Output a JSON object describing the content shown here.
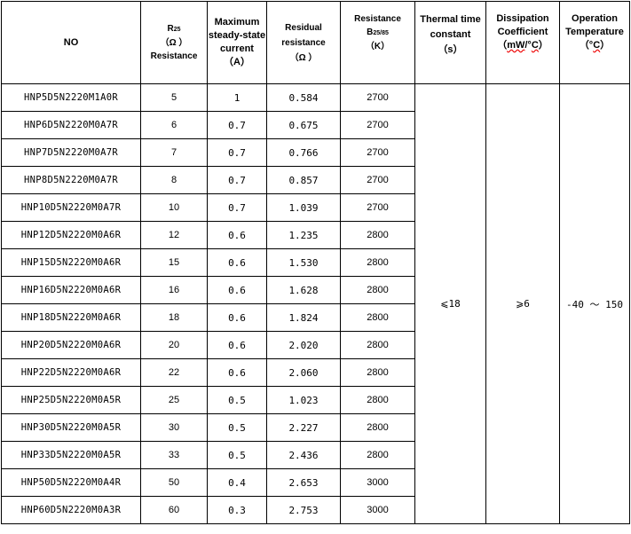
{
  "headers": {
    "no": "NO",
    "r25_a": "R",
    "r25_sub": "25",
    "r25_unit": "（Ω  ）",
    "r25_b": "Resistance",
    "current_a": "Maximum",
    "current_b": "steady-state",
    "current_c": "current",
    "current_unit": "（A）",
    "residual_a": "Residual",
    "residual_b": "resistance",
    "residual_unit": "（Ω  ）",
    "b_a": "Resistance",
    "b_b": "B",
    "b_sub": "25/85",
    "b_unit": "（K）",
    "thermal_a": "Thermal time",
    "thermal_b": "constant",
    "thermal_unit": "（s）",
    "diss_a": "Dissipation",
    "diss_b": "Coefficient",
    "diss_unit_pre": "（",
    "diss_unit_mw": "mW",
    "diss_unit_mid": "/°",
    "diss_unit_c": "C",
    "diss_unit_post": "）",
    "op_a": "Operation",
    "op_b": "Temperature",
    "op_unit_pre": "（°",
    "op_unit_c": "C",
    "op_unit_post": "）"
  },
  "shared": {
    "thermal": "⩽18",
    "dissipation": "⩾6",
    "temperature": "-40 ～ 150"
  },
  "rows": [
    {
      "no": "HNP5D5N2220M1A0R",
      "r25": "5",
      "current": "1",
      "residual": "0.584",
      "b": "2700"
    },
    {
      "no": "HNP6D5N2220M0A7R",
      "r25": "6",
      "current": "0.7",
      "residual": "0.675",
      "b": "2700"
    },
    {
      "no": "HNP7D5N2220M0A7R",
      "r25": "7",
      "current": "0.7",
      "residual": "0.766",
      "b": "2700"
    },
    {
      "no": "HNP8D5N2220M0A7R",
      "r25": "8",
      "current": "0.7",
      "residual": "0.857",
      "b": "2700"
    },
    {
      "no": "HNP10D5N2220M0A7R",
      "r25": "10",
      "current": "0.7",
      "residual": "1.039",
      "b": "2700"
    },
    {
      "no": "HNP12D5N2220M0A6R",
      "r25": "12",
      "current": "0.6",
      "residual": "1.235",
      "b": "2800"
    },
    {
      "no": "HNP15D5N2220M0A6R",
      "r25": "15",
      "current": "0.6",
      "residual": "1.530",
      "b": "2800"
    },
    {
      "no": "HNP16D5N2220M0A6R",
      "r25": "16",
      "current": "0.6",
      "residual": "1.628",
      "b": "2800"
    },
    {
      "no": "HNP18D5N2220M0A6R",
      "r25": "18",
      "current": "0.6",
      "residual": "1.824",
      "b": "2800"
    },
    {
      "no": "HNP20D5N2220M0A6R",
      "r25": "20",
      "current": "0.6",
      "residual": "2.020",
      "b": "2800"
    },
    {
      "no": "HNP22D5N2220M0A6R",
      "r25": "22",
      "current": "0.6",
      "residual": "2.060",
      "b": "2800"
    },
    {
      "no": "HNP25D5N2220M0A5R",
      "r25": "25",
      "current": "0.5",
      "residual": "1.023",
      "b": "2800"
    },
    {
      "no": "HNP30D5N2220M0A5R",
      "r25": "30",
      "current": "0.5",
      "residual": "2.227",
      "b": "2800"
    },
    {
      "no": "HNP33D5N2220M0A5R",
      "r25": "33",
      "current": "0.5",
      "residual": "2.436",
      "b": "2800"
    },
    {
      "no": "HNP50D5N2220M0A4R",
      "r25": "50",
      "current": "0.4",
      "residual": "2.653",
      "b": "3000"
    },
    {
      "no": "HNP60D5N2220M0A3R",
      "r25": "60",
      "current": "0.3",
      "residual": "2.753",
      "b": "3000"
    }
  ]
}
